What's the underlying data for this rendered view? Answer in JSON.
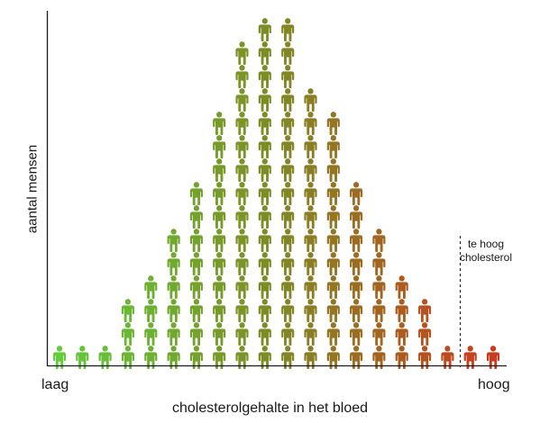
{
  "chart_data": {
    "type": "bar",
    "representation": "pictogram (stacked person icons)",
    "xlabel": "cholesterolgehalte in het bloed",
    "ylabel": "aantal mensen",
    "x_axis_ends": {
      "left": "laag",
      "right": "hoog"
    },
    "annotation": {
      "text": "te hoog cholesterol",
      "style": "dashed vertical line"
    },
    "threshold_after_column": 18,
    "columns": 20,
    "values": [
      1,
      1,
      1,
      3,
      4,
      6,
      8,
      11,
      14,
      15,
      15,
      12,
      11,
      8,
      6,
      4,
      3,
      1,
      1,
      1
    ],
    "grid": false,
    "legend": false
  },
  "colors": {
    "low": "#62cc3c",
    "mid": "#7f8a24",
    "high": "#cc3a1c",
    "axis": "#1a1a1a"
  },
  "icon": "person-icon"
}
